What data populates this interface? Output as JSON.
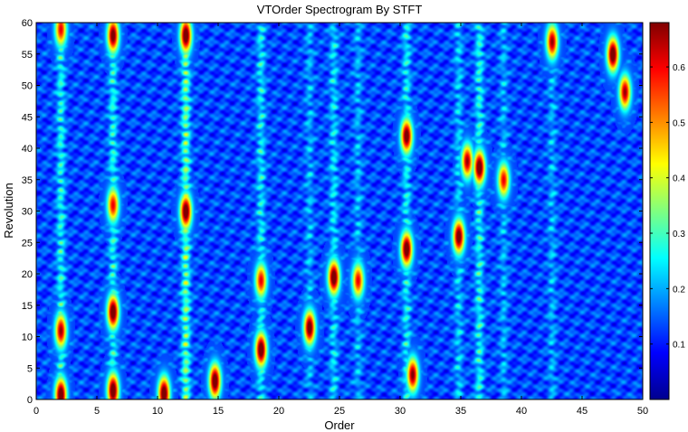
{
  "chart_data": {
    "type": "heatmap",
    "title": "VTOrder Spectrogram By STFT",
    "xlabel": "Order",
    "ylabel": "Revolution",
    "xlim": [
      0,
      50
    ],
    "ylim": [
      0,
      60
    ],
    "x_ticks": [
      0,
      5,
      10,
      15,
      20,
      25,
      30,
      35,
      40,
      45,
      50
    ],
    "y_ticks": [
      0,
      5,
      10,
      15,
      20,
      25,
      30,
      35,
      40,
      45,
      50,
      55,
      60
    ],
    "colorbar": {
      "colormap": "jet",
      "clim": [
        0,
        0.68
      ],
      "ticks": [
        "0.1",
        "0.2",
        "0.3",
        "0.4",
        "0.5",
        "0.6"
      ],
      "tick_values": [
        0.1,
        0.2,
        0.3,
        0.4,
        0.5,
        0.6
      ]
    },
    "background_level": 0.13,
    "order_lines": [
      {
        "order": 2.0,
        "level": 0.3
      },
      {
        "order": 6.3,
        "level": 0.3
      },
      {
        "order": 12.3,
        "level": 0.38
      },
      {
        "order": 18.5,
        "level": 0.28
      },
      {
        "order": 22.5,
        "level": 0.22
      },
      {
        "order": 24.5,
        "level": 0.26
      },
      {
        "order": 26.5,
        "level": 0.22
      },
      {
        "order": 30.5,
        "level": 0.28
      },
      {
        "order": 34.8,
        "level": 0.24
      },
      {
        "order": 36.5,
        "level": 0.3
      },
      {
        "order": 38.5,
        "level": 0.22
      },
      {
        "order": 42.5,
        "level": 0.22
      }
    ],
    "hot_spots": [
      {
        "order": 2.0,
        "rev": 0.8,
        "value": 0.68
      },
      {
        "order": 2.0,
        "rev": 11.0,
        "value": 0.6
      },
      {
        "order": 2.0,
        "rev": 59.0,
        "value": 0.55
      },
      {
        "order": 6.3,
        "rev": 1.5,
        "value": 0.68
      },
      {
        "order": 6.3,
        "rev": 14.0,
        "value": 0.68
      },
      {
        "order": 6.3,
        "rev": 31.0,
        "value": 0.55
      },
      {
        "order": 6.3,
        "rev": 58.0,
        "value": 0.65
      },
      {
        "order": 10.5,
        "rev": 1.0,
        "value": 0.68
      },
      {
        "order": 12.3,
        "rev": 30.0,
        "value": 0.68
      },
      {
        "order": 12.3,
        "rev": 58.0,
        "value": 0.68
      },
      {
        "order": 14.7,
        "rev": 3.0,
        "value": 0.68
      },
      {
        "order": 18.5,
        "rev": 8.0,
        "value": 0.68
      },
      {
        "order": 18.5,
        "rev": 19.0,
        "value": 0.55
      },
      {
        "order": 22.5,
        "rev": 11.5,
        "value": 0.66
      },
      {
        "order": 24.5,
        "rev": 19.5,
        "value": 0.68
      },
      {
        "order": 26.5,
        "rev": 19.0,
        "value": 0.55
      },
      {
        "order": 30.5,
        "rev": 24.0,
        "value": 0.68
      },
      {
        "order": 30.5,
        "rev": 42.0,
        "value": 0.66
      },
      {
        "order": 31.0,
        "rev": 4.0,
        "value": 0.62
      },
      {
        "order": 34.8,
        "rev": 26.0,
        "value": 0.66
      },
      {
        "order": 36.5,
        "rev": 37.0,
        "value": 0.68
      },
      {
        "order": 35.5,
        "rev": 38.0,
        "value": 0.6
      },
      {
        "order": 38.5,
        "rev": 35.0,
        "value": 0.55
      },
      {
        "order": 42.5,
        "rev": 57.0,
        "value": 0.6
      },
      {
        "order": 47.5,
        "rev": 55.0,
        "value": 0.68
      },
      {
        "order": 48.5,
        "rev": 49.0,
        "value": 0.6
      }
    ]
  }
}
